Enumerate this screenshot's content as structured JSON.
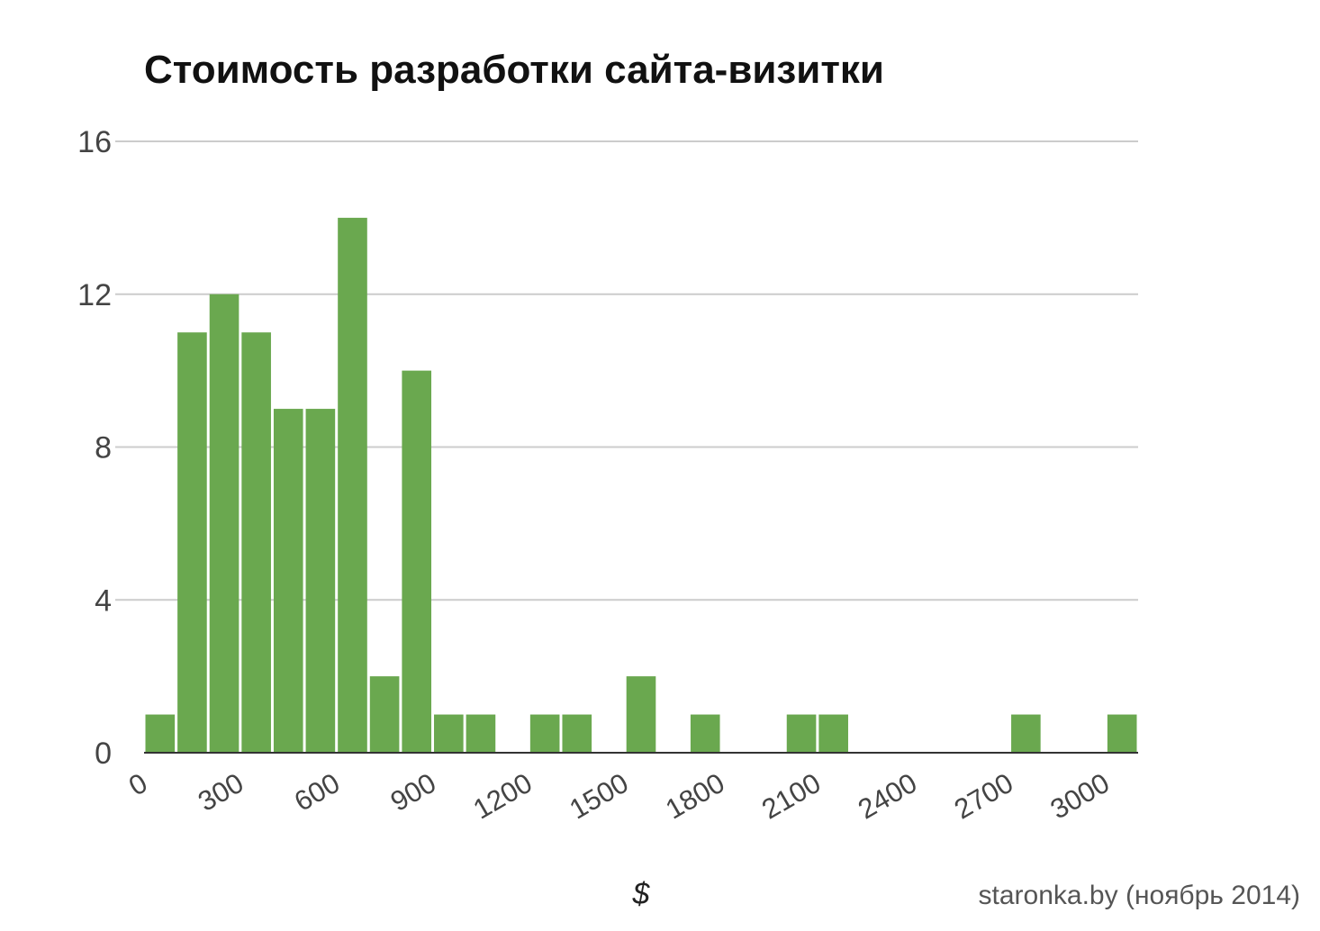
{
  "chart_data": {
    "type": "bar",
    "title": "Стоимость разработки сайта-визитки",
    "xlabel": "$",
    "ylabel": "",
    "source": "staronka.by (ноябрь 2014)",
    "bin_width": 100,
    "xlim": [
      0,
      3100
    ],
    "ylim": [
      0,
      16
    ],
    "y_ticks": [
      "0",
      "4",
      "8",
      "12",
      "16"
    ],
    "x_ticks": [
      "0",
      "300",
      "600",
      "900",
      "1200",
      "1500",
      "1800",
      "2100",
      "2400",
      "2700",
      "3000"
    ],
    "grid": true,
    "bar_color": "#6aa84f",
    "x": [
      0,
      100,
      200,
      300,
      400,
      500,
      600,
      700,
      800,
      900,
      1000,
      1100,
      1200,
      1300,
      1400,
      1500,
      1600,
      1700,
      1800,
      1900,
      2000,
      2100,
      2200,
      2300,
      2400,
      2500,
      2600,
      2700,
      2800,
      2900,
      3000
    ],
    "values": [
      1,
      11,
      12,
      11,
      9,
      9,
      14,
      2,
      10,
      1,
      1,
      0,
      1,
      1,
      0,
      2,
      0,
      1,
      0,
      0,
      1,
      1,
      0,
      0,
      0,
      0,
      0,
      1,
      0,
      0,
      1
    ]
  }
}
